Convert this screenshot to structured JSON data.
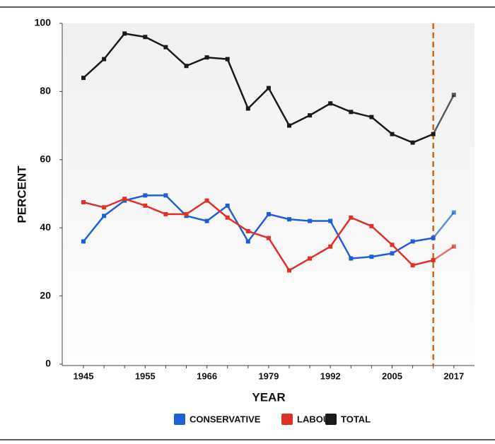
{
  "chart_data": {
    "type": "line",
    "xlabel": "YEAR",
    "ylabel": "PERCENT",
    "categories": [
      "1945",
      null,
      null,
      "1955",
      null,
      null,
      "1966",
      null,
      null,
      "1979",
      null,
      null,
      "1992",
      null,
      null,
      "2005",
      null,
      null,
      "2017"
    ],
    "series": [
      {
        "name": "CONSERVATIVE",
        "color": "#1f5fd6",
        "values": [
          36,
          43.5,
          48,
          49.5,
          49.5,
          43.5,
          42,
          46.5,
          36,
          44,
          42.5,
          42,
          42,
          31,
          31.5,
          32.5,
          36,
          37,
          44.5
        ]
      },
      {
        "name": "LABOUR",
        "color": "#e0302a",
        "values": [
          47.5,
          46,
          48.5,
          46.5,
          44,
          44,
          48,
          43,
          39,
          37,
          27.5,
          31,
          34.5,
          43,
          40.5,
          35,
          29,
          30.5,
          34.5
        ]
      },
      {
        "name": "TOTAL",
        "color": "#1a1a1a",
        "values": [
          84,
          89.5,
          97,
          96,
          93,
          87.5,
          90,
          89.5,
          75,
          81,
          70,
          73,
          76.5,
          74,
          72.5,
          67.5,
          65,
          67.5,
          79
        ]
      }
    ],
    "ylim": [
      0,
      100
    ],
    "yticks": [
      0,
      20,
      40,
      60,
      80,
      100
    ]
  }
}
